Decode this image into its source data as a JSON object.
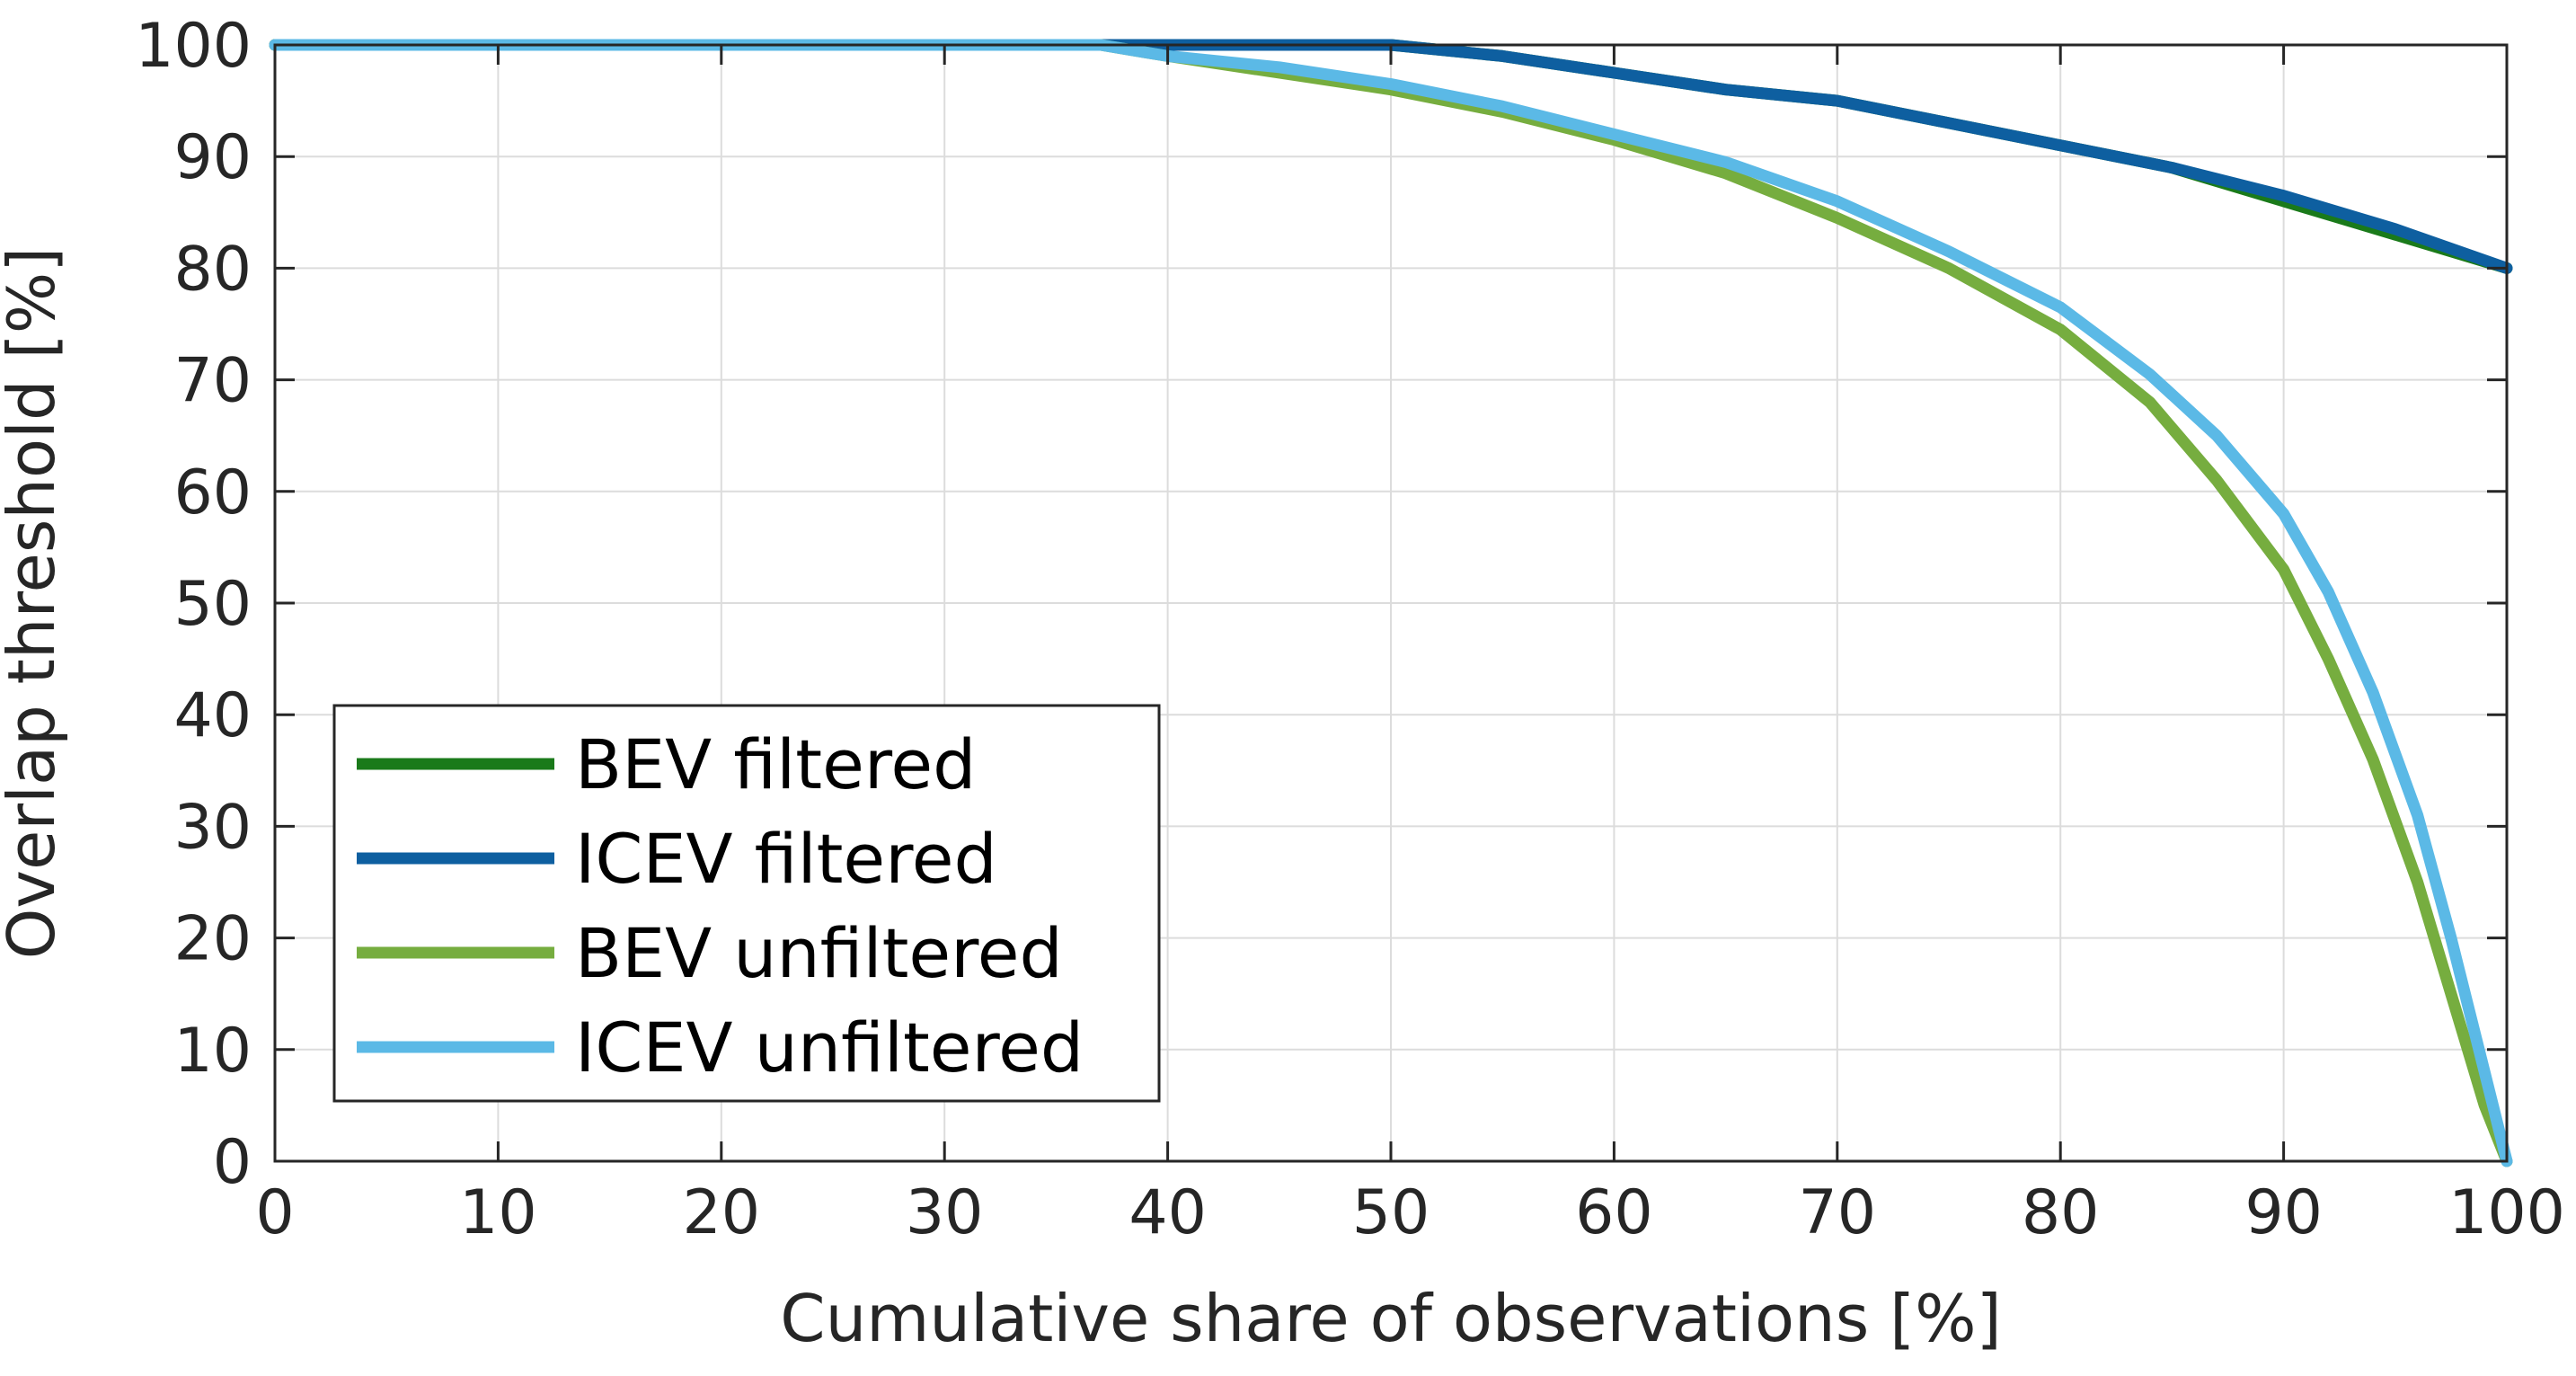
{
  "chart_data": {
    "type": "line",
    "title": "",
    "xlabel": "Cumulative share of observations [%]",
    "ylabel": "Overlap threshold [%]",
    "xlim": [
      0,
      100
    ],
    "ylim": [
      0,
      100
    ],
    "xticks": [
      0,
      10,
      20,
      30,
      40,
      50,
      60,
      70,
      80,
      90,
      100
    ],
    "yticks": [
      0,
      10,
      20,
      30,
      40,
      50,
      60,
      70,
      80,
      90,
      100
    ],
    "grid": true,
    "legend_position": "bottom-left",
    "series": [
      {
        "name": "BEV filtered",
        "color": "#1a7a1a",
        "x": [
          0,
          10,
          20,
          30,
          37,
          40,
          45,
          50,
          55,
          60,
          65,
          70,
          75,
          80,
          85,
          90,
          95,
          100
        ],
        "y": [
          100,
          100,
          100,
          100,
          100,
          100,
          100,
          100,
          99,
          97.5,
          96,
          95,
          93,
          91,
          89,
          86,
          83,
          80
        ]
      },
      {
        "name": "ICEV filtered",
        "color": "#0e5fa0",
        "x": [
          0,
          10,
          20,
          30,
          37,
          40,
          45,
          50,
          55,
          60,
          65,
          70,
          75,
          80,
          85,
          90,
          95,
          100
        ],
        "y": [
          100,
          100,
          100,
          100,
          100,
          100,
          100,
          100,
          99,
          97.5,
          96,
          95,
          93,
          91,
          89,
          86.5,
          83.5,
          80
        ]
      },
      {
        "name": "BEV unfiltered",
        "color": "#76ad3f",
        "x": [
          0,
          10,
          20,
          30,
          37,
          40,
          45,
          50,
          55,
          60,
          65,
          70,
          75,
          80,
          84,
          87,
          90,
          92,
          94,
          96,
          97.5,
          99,
          100
        ],
        "y": [
          100,
          100,
          100,
          100,
          100,
          99,
          97.5,
          96,
          94,
          91.5,
          88.5,
          84.5,
          80,
          74.5,
          68,
          61,
          53,
          45,
          36,
          25,
          15,
          5,
          0
        ]
      },
      {
        "name": "ICEV unfiltered",
        "color": "#5bb9e6",
        "x": [
          0,
          10,
          20,
          30,
          37,
          40,
          45,
          50,
          55,
          60,
          65,
          70,
          75,
          80,
          84,
          87,
          90,
          92,
          94,
          96,
          97.5,
          99,
          100
        ],
        "y": [
          100,
          100,
          100,
          100,
          100,
          99,
          98,
          96.5,
          94.5,
          92,
          89.5,
          86,
          81.5,
          76.5,
          70.5,
          65,
          58,
          51,
          42,
          31,
          20,
          8,
          0
        ]
      }
    ]
  }
}
